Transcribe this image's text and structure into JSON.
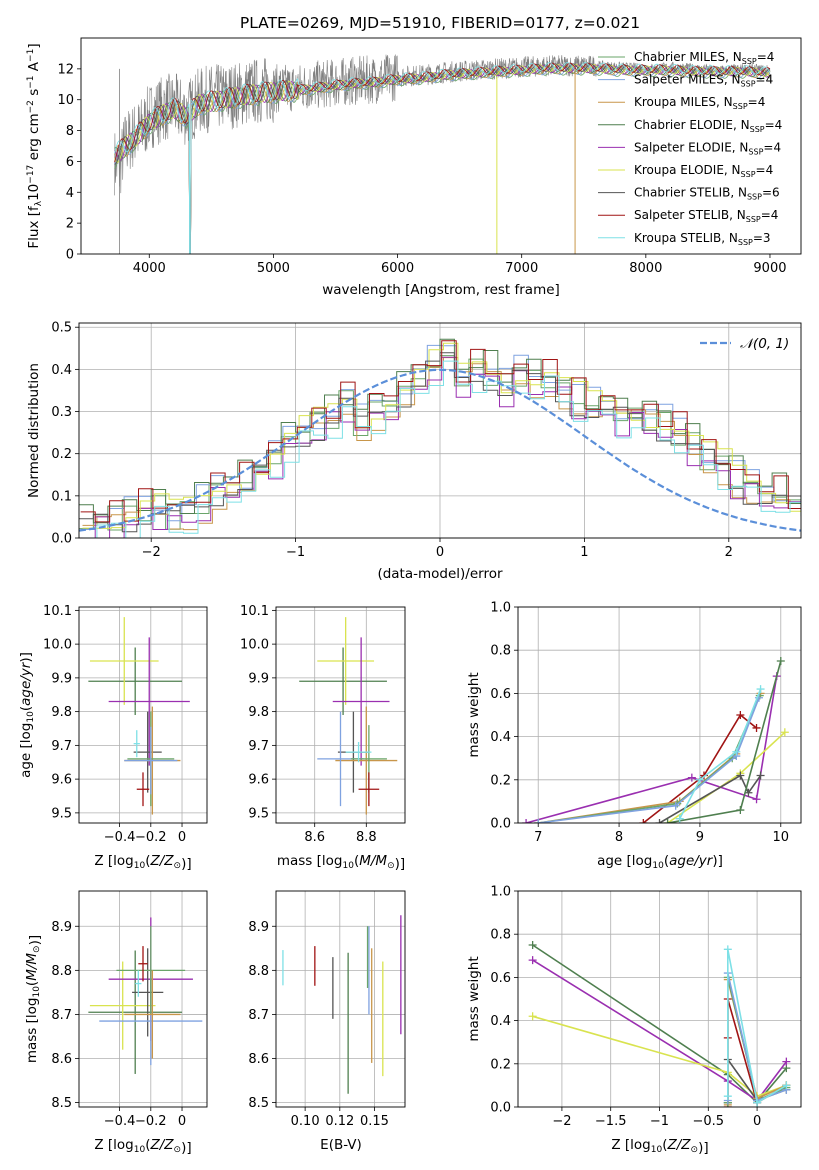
{
  "figure": {
    "title": "PLATE=0269, MJD=51910, FIBERID=0177, z=0.021"
  },
  "models": [
    {
      "name": "Chabrier MILES, N",
      "sub": "SSP",
      "tail": "=4",
      "color": "#6aa56a"
    },
    {
      "name": "Salpeter MILES, N",
      "sub": "SSP",
      "tail": "=4",
      "color": "#7fa2e0"
    },
    {
      "name": "Kroupa MILES, N",
      "sub": "SSP",
      "tail": "=4",
      "color": "#c8964a"
    },
    {
      "name": "Chabrier ELODIE, N",
      "sub": "SSP",
      "tail": "=4",
      "color": "#4f7f4f"
    },
    {
      "name": "Salpeter ELODIE, N",
      "sub": "SSP",
      "tail": "=4",
      "color": "#9a2fb0"
    },
    {
      "name": "Kroupa ELODIE, N",
      "sub": "SSP",
      "tail": "=4",
      "color": "#d9e34f"
    },
    {
      "name": "Chabrier STELIB, N",
      "sub": "SSP",
      "tail": "=6",
      "color": "#555555"
    },
    {
      "name": "Salpeter STELIB, N",
      "sub": "SSP",
      "tail": "=4",
      "color": "#a01414"
    },
    {
      "name": "Kroupa STELIB, N",
      "sub": "SSP",
      "tail": "=3",
      "color": "#7ee0e6"
    }
  ],
  "chart_data": [
    {
      "id": "spectrum",
      "type": "line",
      "title": "PLATE=0269, MJD=51910, FIBERID=0177, z=0.021",
      "xlabel": "wavelength [Angstrom, rest frame]",
      "ylabel": "Flux [f",
      "xlim": [
        3450,
        9250
      ],
      "ylim": [
        0,
        14
      ],
      "xticks": [
        4000,
        5000,
        6000,
        7000,
        8000,
        9000
      ],
      "yticks": [
        0,
        2,
        4,
        6,
        8,
        10,
        12
      ],
      "grid": false,
      "legend": "right",
      "series": [
        {
          "name": "data",
          "color": "#808080",
          "x": [
            3720,
            3760,
            3800,
            3850,
            3900,
            3950,
            4000,
            4100,
            4200,
            4300,
            4400,
            4500,
            4600,
            4700,
            4800,
            4900,
            5000,
            5200,
            5400,
            5600,
            5800,
            6000,
            6200,
            6400,
            6600,
            6800,
            7000,
            7200,
            7400,
            7600,
            7800,
            8000,
            8200,
            8400,
            8600,
            8800,
            9000
          ],
          "y": [
            6.0,
            5.5,
            7.0,
            7.5,
            7.8,
            8.2,
            8.9,
            9.4,
            9.6,
            9.1,
            9.9,
            10.1,
            10.2,
            10.3,
            10.5,
            10.6,
            10.7,
            10.8,
            11.0,
            11.2,
            11.3,
            11.5,
            11.6,
            11.8,
            11.9,
            12.0,
            12.1,
            12.2,
            12.2,
            12.2,
            12.1,
            12.0,
            12.1,
            12.0,
            11.9,
            12.0,
            11.9
          ]
        },
        {
          "name": "Kroupa STELIB, N=3",
          "color": "#7ee0e6",
          "x": [
            3720,
            3800,
            3900,
            4000,
            4100,
            4200,
            4300,
            4400,
            4600,
            4800,
            5000,
            5200,
            5400,
            5600,
            5800,
            6000,
            6200,
            6400,
            6600,
            6800,
            7000,
            7200,
            7400,
            7600,
            7800,
            8000,
            8200,
            8400,
            8600,
            8800,
            9000
          ],
          "y": [
            6.3,
            6.9,
            7.6,
            8.5,
            9.0,
            9.4,
            8.9,
            9.7,
            10.0,
            10.3,
            10.5,
            10.6,
            10.8,
            11.0,
            11.1,
            11.3,
            11.4,
            11.6,
            11.7,
            11.8,
            11.9,
            12.0,
            12.0,
            12.0,
            11.9,
            11.9,
            11.9,
            11.8,
            11.8,
            11.8,
            11.7
          ]
        }
      ]
    },
    {
      "id": "residuals",
      "type": "bar",
      "xlabel": "(data-model)/error",
      "ylabel": "Normed distribution",
      "xlim": [
        -2.5,
        2.5
      ],
      "ylim": [
        0,
        0.51
      ],
      "xticks": [
        -2,
        -1,
        0,
        1,
        2
      ],
      "yticks": [
        0.0,
        0.1,
        0.2,
        0.3,
        0.4,
        0.5
      ],
      "grid": true,
      "legend": "top-right",
      "reference_curve": {
        "name": "𝒩(0, 1)",
        "color": "#5b8fd9",
        "mean": 0,
        "sigma": 1
      },
      "bin_width": 0.1,
      "bin_start": -2.5,
      "histogram_values": [
        0.03,
        0.04,
        0.04,
        0.05,
        0.07,
        0.07,
        0.05,
        0.06,
        0.08,
        0.11,
        0.14,
        0.13,
        0.16,
        0.19,
        0.22,
        0.25,
        0.27,
        0.29,
        0.32,
        0.27,
        0.3,
        0.33,
        0.35,
        0.38,
        0.41,
        0.42,
        0.38,
        0.4,
        0.39,
        0.36,
        0.39,
        0.37,
        0.38,
        0.35,
        0.33,
        0.31,
        0.3,
        0.29,
        0.29,
        0.28,
        0.27,
        0.25,
        0.22,
        0.19,
        0.17,
        0.14,
        0.12,
        0.11,
        0.1,
        0.08,
        0.07,
        0.06,
        0.05,
        0.05,
        0.04,
        0.04,
        0.03,
        0.03,
        0.03,
        0.03
      ],
      "series_offsets": [
        0.0,
        0.018,
        -0.015,
        0.025,
        -0.02,
        0.012,
        -0.01,
        0.02,
        -0.025
      ]
    },
    {
      "id": "age-vs-Z",
      "type": "scatter",
      "xlabel": "Z [log",
      "ylabel": "age  [log",
      "xlim": [
        -0.66,
        0.16
      ],
      "ylim": [
        9.47,
        10.11
      ],
      "xticks": [
        -0.4,
        -0.2,
        0.0
      ],
      "yticks": [
        9.5,
        9.6,
        9.7,
        9.8,
        9.9,
        10.0,
        10.1
      ],
      "grid": true,
      "points": [
        {
          "x": -0.3,
          "y": 9.89,
          "xerr": 0.3,
          "yerr": 0.1,
          "model": 3
        },
        {
          "x": -0.37,
          "y": 9.95,
          "xerr": 0.22,
          "yerr": 0.13,
          "model": 5
        },
        {
          "x": -0.21,
          "y": 9.83,
          "xerr": 0.26,
          "yerr": 0.19,
          "model": 4
        },
        {
          "x": -0.22,
          "y": 9.68,
          "xerr": 0.09,
          "yerr": 0.12,
          "model": 6
        },
        {
          "x": -0.19,
          "y": 9.655,
          "xerr": 0.18,
          "yerr": 0.16,
          "model": 2
        },
        {
          "x": -0.2,
          "y": 9.66,
          "xerr": 0.15,
          "yerr": 0.14,
          "model": 0
        },
        {
          "x": -0.2,
          "y": 9.655,
          "xerr": 0.17,
          "yerr": 0.1,
          "model": 1
        },
        {
          "x": -0.25,
          "y": 9.57,
          "xerr": 0.04,
          "yerr": 0.05,
          "model": 7
        },
        {
          "x": -0.29,
          "y": 9.705,
          "xerr": 0.02,
          "yerr": 0.04,
          "model": 8
        }
      ]
    },
    {
      "id": "age-vs-mass",
      "type": "scatter",
      "xlabel": "mass [log",
      "ylabel": "",
      "xlim": [
        8.45,
        8.95
      ],
      "ylim": [
        9.47,
        10.11
      ],
      "xticks": [
        8.6,
        8.8
      ],
      "yticks": [
        9.5,
        9.6,
        9.7,
        9.8,
        9.9,
        10.0,
        10.1
      ],
      "grid": true,
      "points": [
        {
          "x": 8.71,
          "y": 9.89,
          "xerr": 0.17,
          "yerr": 0.1,
          "model": 3
        },
        {
          "x": 8.72,
          "y": 9.95,
          "xerr": 0.11,
          "yerr": 0.13,
          "model": 5
        },
        {
          "x": 8.78,
          "y": 9.83,
          "xerr": 0.11,
          "yerr": 0.19,
          "model": 4
        },
        {
          "x": 8.75,
          "y": 9.68,
          "xerr": 0.06,
          "yerr": 0.12,
          "model": 6
        },
        {
          "x": 8.8,
          "y": 9.655,
          "xerr": 0.12,
          "yerr": 0.16,
          "model": 2
        },
        {
          "x": 8.7,
          "y": 9.66,
          "xerr": 0.09,
          "yerr": 0.14,
          "model": 1
        },
        {
          "x": 8.81,
          "y": 9.66,
          "xerr": 0.07,
          "yerr": 0.1,
          "model": 0
        },
        {
          "x": 8.81,
          "y": 9.57,
          "xerr": 0.04,
          "yerr": 0.05,
          "model": 7
        },
        {
          "x": 8.77,
          "y": 9.68,
          "xerr": 0.05,
          "yerr": 0.03,
          "model": 8
        }
      ]
    },
    {
      "id": "weight-vs-age",
      "type": "line",
      "xlabel": "age  [log",
      "ylabel": "mass weight",
      "xlim": [
        6.75,
        10.25
      ],
      "ylim": [
        0,
        1.0
      ],
      "xticks": [
        7,
        8,
        9,
        10
      ],
      "yticks": [
        0.0,
        0.2,
        0.4,
        0.6,
        0.8,
        1.0
      ],
      "grid": true,
      "series": [
        {
          "model": 4,
          "x": [
            6.85,
            8.9,
            9.7,
            9.95
          ],
          "y": [
            0.0,
            0.21,
            0.11,
            0.68
          ]
        },
        {
          "model": 7,
          "x": [
            8.3,
            9.05,
            9.5,
            9.7
          ],
          "y": [
            0.0,
            0.22,
            0.5,
            0.44
          ]
        },
        {
          "model": 5,
          "x": [
            8.6,
            9.5,
            10.05
          ],
          "y": [
            0.0,
            0.23,
            0.42
          ]
        },
        {
          "model": 6,
          "x": [
            8.5,
            9.5,
            9.6,
            9.75
          ],
          "y": [
            0.0,
            0.22,
            0.14,
            0.22
          ]
        },
        {
          "model": 3,
          "x": [
            8.6,
            9.5,
            10.0
          ],
          "y": [
            0.0,
            0.06,
            0.75
          ]
        },
        {
          "model": 2,
          "x": [
            7.0,
            8.75,
            9.45,
            9.75
          ],
          "y": [
            0.0,
            0.1,
            0.32,
            0.6
          ]
        },
        {
          "model": 0,
          "x": [
            7.0,
            8.72,
            9.4,
            9.74
          ],
          "y": [
            0.0,
            0.09,
            0.3,
            0.59
          ]
        },
        {
          "model": 1,
          "x": [
            7.0,
            8.7,
            9.45,
            9.73
          ],
          "y": [
            0.0,
            0.08,
            0.31,
            0.58
          ]
        },
        {
          "model": 8,
          "x": [
            8.75,
            9.0,
            9.45,
            9.75
          ],
          "y": [
            0.02,
            0.2,
            0.33,
            0.62
          ]
        }
      ]
    },
    {
      "id": "mass-vs-Z",
      "type": "scatter",
      "xlabel": "Z [log",
      "ylabel": "mass [log",
      "xlim": [
        -0.66,
        0.16
      ],
      "ylim": [
        8.49,
        8.98
      ],
      "xticks": [
        -0.4,
        -0.2,
        0.0
      ],
      "yticks": [
        8.5,
        8.6,
        8.7,
        8.8,
        8.9
      ],
      "grid": true,
      "points": [
        {
          "x": -0.3,
          "y": 8.705,
          "xerr": 0.3,
          "yerr": 0.14,
          "model": 3
        },
        {
          "x": -0.38,
          "y": 8.72,
          "xerr": 0.21,
          "yerr": 0.1,
          "model": 5
        },
        {
          "x": -0.2,
          "y": 8.78,
          "xerr": 0.27,
          "yerr": 0.14,
          "model": 4
        },
        {
          "x": -0.22,
          "y": 8.75,
          "xerr": 0.1,
          "yerr": 0.1,
          "model": 6
        },
        {
          "x": -0.2,
          "y": 8.685,
          "xerr": 0.33,
          "yerr": 0.1,
          "model": 1
        },
        {
          "x": -0.2,
          "y": 8.8,
          "xerr": 0.22,
          "yerr": 0.1,
          "model": 0
        },
        {
          "x": -0.19,
          "y": 8.7,
          "xerr": 0.18,
          "yerr": 0.1,
          "model": 2
        },
        {
          "x": -0.25,
          "y": 8.815,
          "xerr": 0.03,
          "yerr": 0.04,
          "model": 7
        },
        {
          "x": -0.28,
          "y": 8.77,
          "xerr": 0.02,
          "yerr": 0.03,
          "model": 8
        }
      ]
    },
    {
      "id": "mass-vs-EBV",
      "type": "scatter",
      "xlabel": "E(B-V)",
      "ylabel": "",
      "xlim": [
        0.079,
        0.172
      ],
      "ylim": [
        8.49,
        8.98
      ],
      "xticks": [
        0.1,
        0.125,
        0.15
      ],
      "xticklabels": [
        "0.10",
        "0.12",
        "0.15"
      ],
      "yticks": [
        8.5,
        8.6,
        8.7,
        8.8,
        8.9
      ],
      "grid": true,
      "points": [
        {
          "x": 0.084,
          "y": 8.806,
          "yerr": 0.04,
          "model": 8
        },
        {
          "x": 0.107,
          "y": 8.81,
          "yerr": 0.045,
          "model": 7
        },
        {
          "x": 0.12,
          "y": 8.76,
          "yerr": 0.07,
          "model": 6
        },
        {
          "x": 0.131,
          "y": 8.68,
          "yerr": 0.16,
          "model": 3
        },
        {
          "x": 0.146,
          "y": 8.8,
          "yerr": 0.1,
          "model": 1
        },
        {
          "x": 0.148,
          "y": 8.72,
          "yerr": 0.13,
          "model": 2
        },
        {
          "x": 0.156,
          "y": 8.69,
          "yerr": 0.13,
          "model": 5
        },
        {
          "x": 0.169,
          "y": 8.79,
          "yerr": 0.135,
          "model": 4
        },
        {
          "x": 0.145,
          "y": 8.83,
          "yerr": 0.07,
          "model": 0
        }
      ]
    },
    {
      "id": "weight-vs-Z",
      "type": "line",
      "xlabel": "Z [log",
      "ylabel": "mass weight",
      "xlim": [
        -2.45,
        0.45
      ],
      "ylim": [
        0,
        1.0
      ],
      "xticks": [
        -2.0,
        -1.5,
        -1.0,
        -0.5,
        0.0
      ],
      "yticks": [
        0.0,
        0.2,
        0.4,
        0.6,
        0.8,
        1.0
      ],
      "grid": true,
      "series": [
        {
          "model": 3,
          "x": [
            -2.3,
            -0.3,
            0.0,
            0.3
          ],
          "y": [
            0.75,
            0.15,
            0.02,
            0.18
          ]
        },
        {
          "model": 4,
          "x": [
            -2.3,
            -0.3,
            0.0,
            0.3
          ],
          "y": [
            0.68,
            0.12,
            0.03,
            0.21
          ]
        },
        {
          "model": 5,
          "x": [
            -2.3,
            -0.3,
            0.0,
            0.3
          ],
          "y": [
            0.42,
            0.16,
            0.05,
            0.1
          ]
        },
        {
          "model": 6,
          "x": [
            -0.3,
            -0.3,
            0.0,
            0.3
          ],
          "y": [
            0.02,
            0.22,
            0.03,
            0.08
          ]
        },
        {
          "model": 7,
          "x": [
            -0.3,
            -0.3,
            -0.3,
            0.0,
            0.3
          ],
          "y": [
            0.0,
            0.32,
            0.5,
            0.02,
            0.1
          ]
        },
        {
          "model": 2,
          "x": [
            -0.3,
            -0.3,
            0.0,
            0.3
          ],
          "y": [
            0.01,
            0.59,
            0.04,
            0.1
          ]
        },
        {
          "model": 0,
          "x": [
            -0.3,
            -0.3,
            0.0,
            0.3
          ],
          "y": [
            0.02,
            0.6,
            0.03,
            0.09
          ]
        },
        {
          "model": 1,
          "x": [
            -0.3,
            -0.3,
            0.0,
            0.3
          ],
          "y": [
            0.03,
            0.62,
            0.03,
            0.08
          ]
        },
        {
          "model": 8,
          "x": [
            -0.3,
            -0.3,
            0.0,
            0.3
          ],
          "y": [
            0.05,
            0.73,
            0.02,
            0.1
          ]
        }
      ]
    }
  ]
}
